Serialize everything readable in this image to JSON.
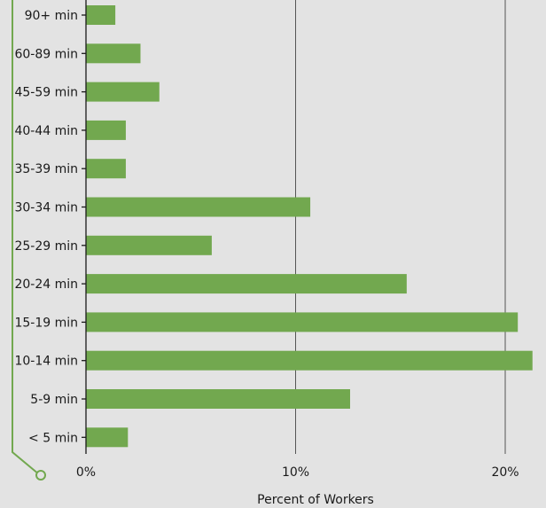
{
  "chart_data": {
    "type": "bar",
    "orientation": "horizontal",
    "categories": [
      "90+ min",
      "60-89 min",
      "45-59 min",
      "40-44 min",
      "35-39 min",
      "30-34 min",
      "25-29 min",
      "20-24 min",
      "15-19 min",
      "10-14 min",
      "5-9 min",
      "< 5 min"
    ],
    "values": [
      1.4,
      2.6,
      3.5,
      1.9,
      1.9,
      10.7,
      6.0,
      15.3,
      20.6,
      21.3,
      12.6,
      2.0
    ],
    "title": "",
    "xlabel": "Percent of Workers",
    "ylabel": "",
    "xlim": [
      0,
      22
    ],
    "xticks": [
      0,
      10,
      20
    ],
    "xtick_labels": [
      "0%",
      "10%",
      "20%"
    ],
    "grid": "vertical",
    "colors": {
      "bar": "#72a84f",
      "background": "#e3e3e3",
      "axis": "#1a1a1a",
      "grid": "#555555",
      "accent_line": "#72a84f"
    }
  }
}
